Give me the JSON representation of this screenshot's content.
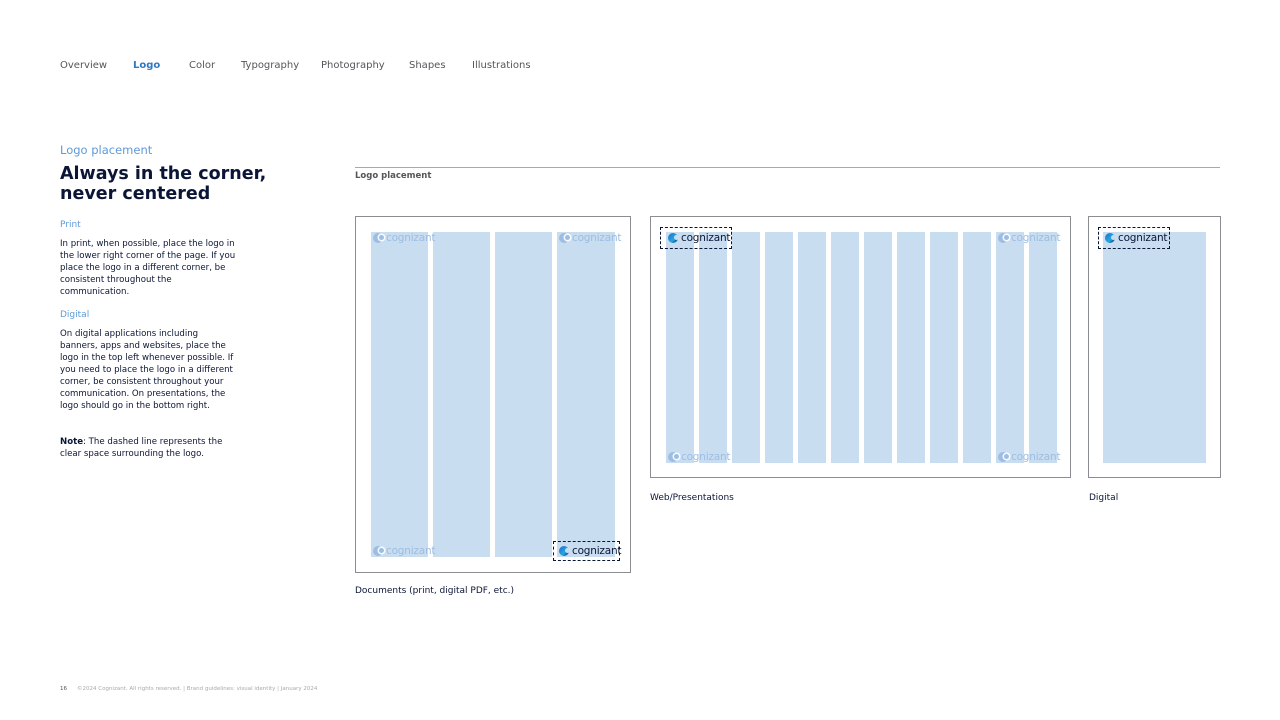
{
  "nav": {
    "items": [
      "Overview",
      "Logo",
      "Color",
      "Typography",
      "Photography",
      "Shapes",
      "Illustrations"
    ],
    "active": "Logo"
  },
  "left": {
    "eyebrow": "Logo placement",
    "headline": "Always in the corner, never centered",
    "print_heading": "Print",
    "print_text": "In print, when possible, place the logo in the lower right corner of the page. If you place the logo in a different corner, be consistent throughout the communication.",
    "digital_heading": "Digital",
    "digital_text": "On digital applications including banners, apps and websites, place the logo in the top left whenever possible. If you need to place the logo in a different corner, be consistent throughout your communication. On presentations, the logo should go in the bottom right.",
    "note_label": "Note",
    "note_text": ": The dashed line represents the clear space surrounding the logo."
  },
  "examples": {
    "section_label": "Logo placement",
    "logo_text": "cognizant",
    "documents_caption": "Documents (print, digital PDF, etc.)",
    "web_caption": "Web/Presentations",
    "digital_caption": "Digital"
  },
  "footer": {
    "page": "16",
    "text": "©2024 Cognizant. All rights reserved.  |  Brand guidelines: visual identity  |  January 2024"
  },
  "colors": {
    "brand_navy": "#0b1636",
    "accent_blue": "#2f78c4",
    "column_blue": "#c9ddf1",
    "ghost_logo": "#9dbde2"
  }
}
